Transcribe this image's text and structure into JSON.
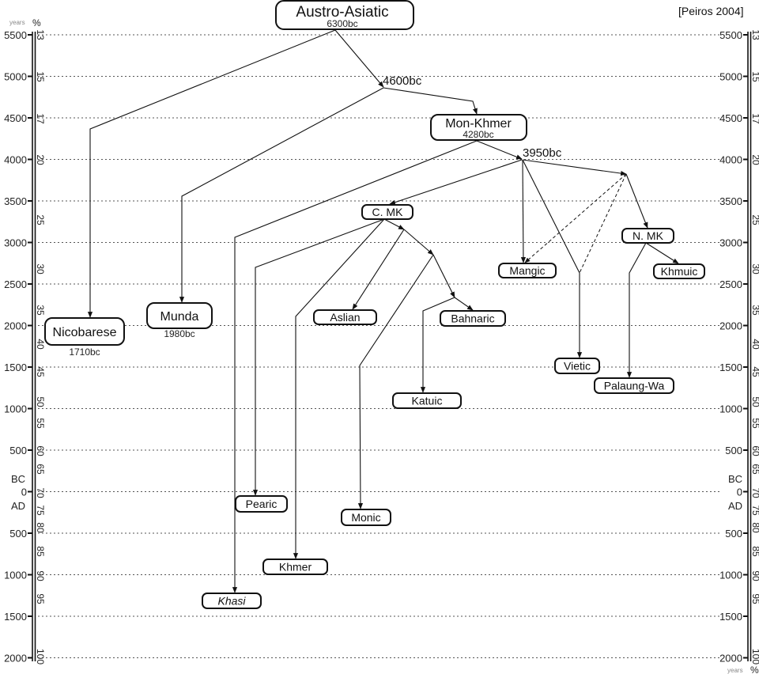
{
  "source": "[Peiros 2004]",
  "axis": {
    "years_label": "years",
    "percent_label": "%",
    "bc_label": "BC",
    "ad_label": "AD",
    "year_ticks": [
      "5500",
      "5000",
      "4500",
      "4000",
      "3500",
      "3000",
      "2500",
      "2000",
      "1500",
      "1000",
      "500",
      "0",
      "500",
      "1000",
      "1500",
      "2000"
    ],
    "percent_ticks": [
      "13",
      "15",
      "17",
      "20",
      "25",
      "30",
      "35",
      "40",
      "45",
      "50",
      "55",
      "60",
      "65",
      "70",
      "75",
      "80",
      "85",
      "90",
      "95",
      "100"
    ]
  },
  "nodes": {
    "austro_asiatic": {
      "label": "Austro-Asiatic",
      "date": "6300bc"
    },
    "mon_khmer": {
      "label": "Mon-Khmer",
      "date": "4280bc"
    },
    "nicobarese": {
      "label": "Nicobarese",
      "date": "1710bc"
    },
    "munda": {
      "label": "Munda",
      "date": "1980bc"
    },
    "c_mk": {
      "label": "C. MK"
    },
    "n_mk": {
      "label": "N. MK"
    },
    "mangic": {
      "label": "Mangic"
    },
    "khmuic": {
      "label": "Khmuic"
    },
    "aslian": {
      "label": "Aslian"
    },
    "bahnaric": {
      "label": "Bahnaric"
    },
    "vietic": {
      "label": "Vietic"
    },
    "palaung_wa": {
      "label": "Palaung-Wa"
    },
    "katuic": {
      "label": "Katuic"
    },
    "pearic": {
      "label": "Pearic"
    },
    "monic": {
      "label": "Monic"
    },
    "khmer": {
      "label": "Khmer"
    },
    "khasi": {
      "label": "Khasi"
    }
  },
  "junctions": {
    "j4600": "4600bc",
    "j3950": "3950bc"
  }
}
